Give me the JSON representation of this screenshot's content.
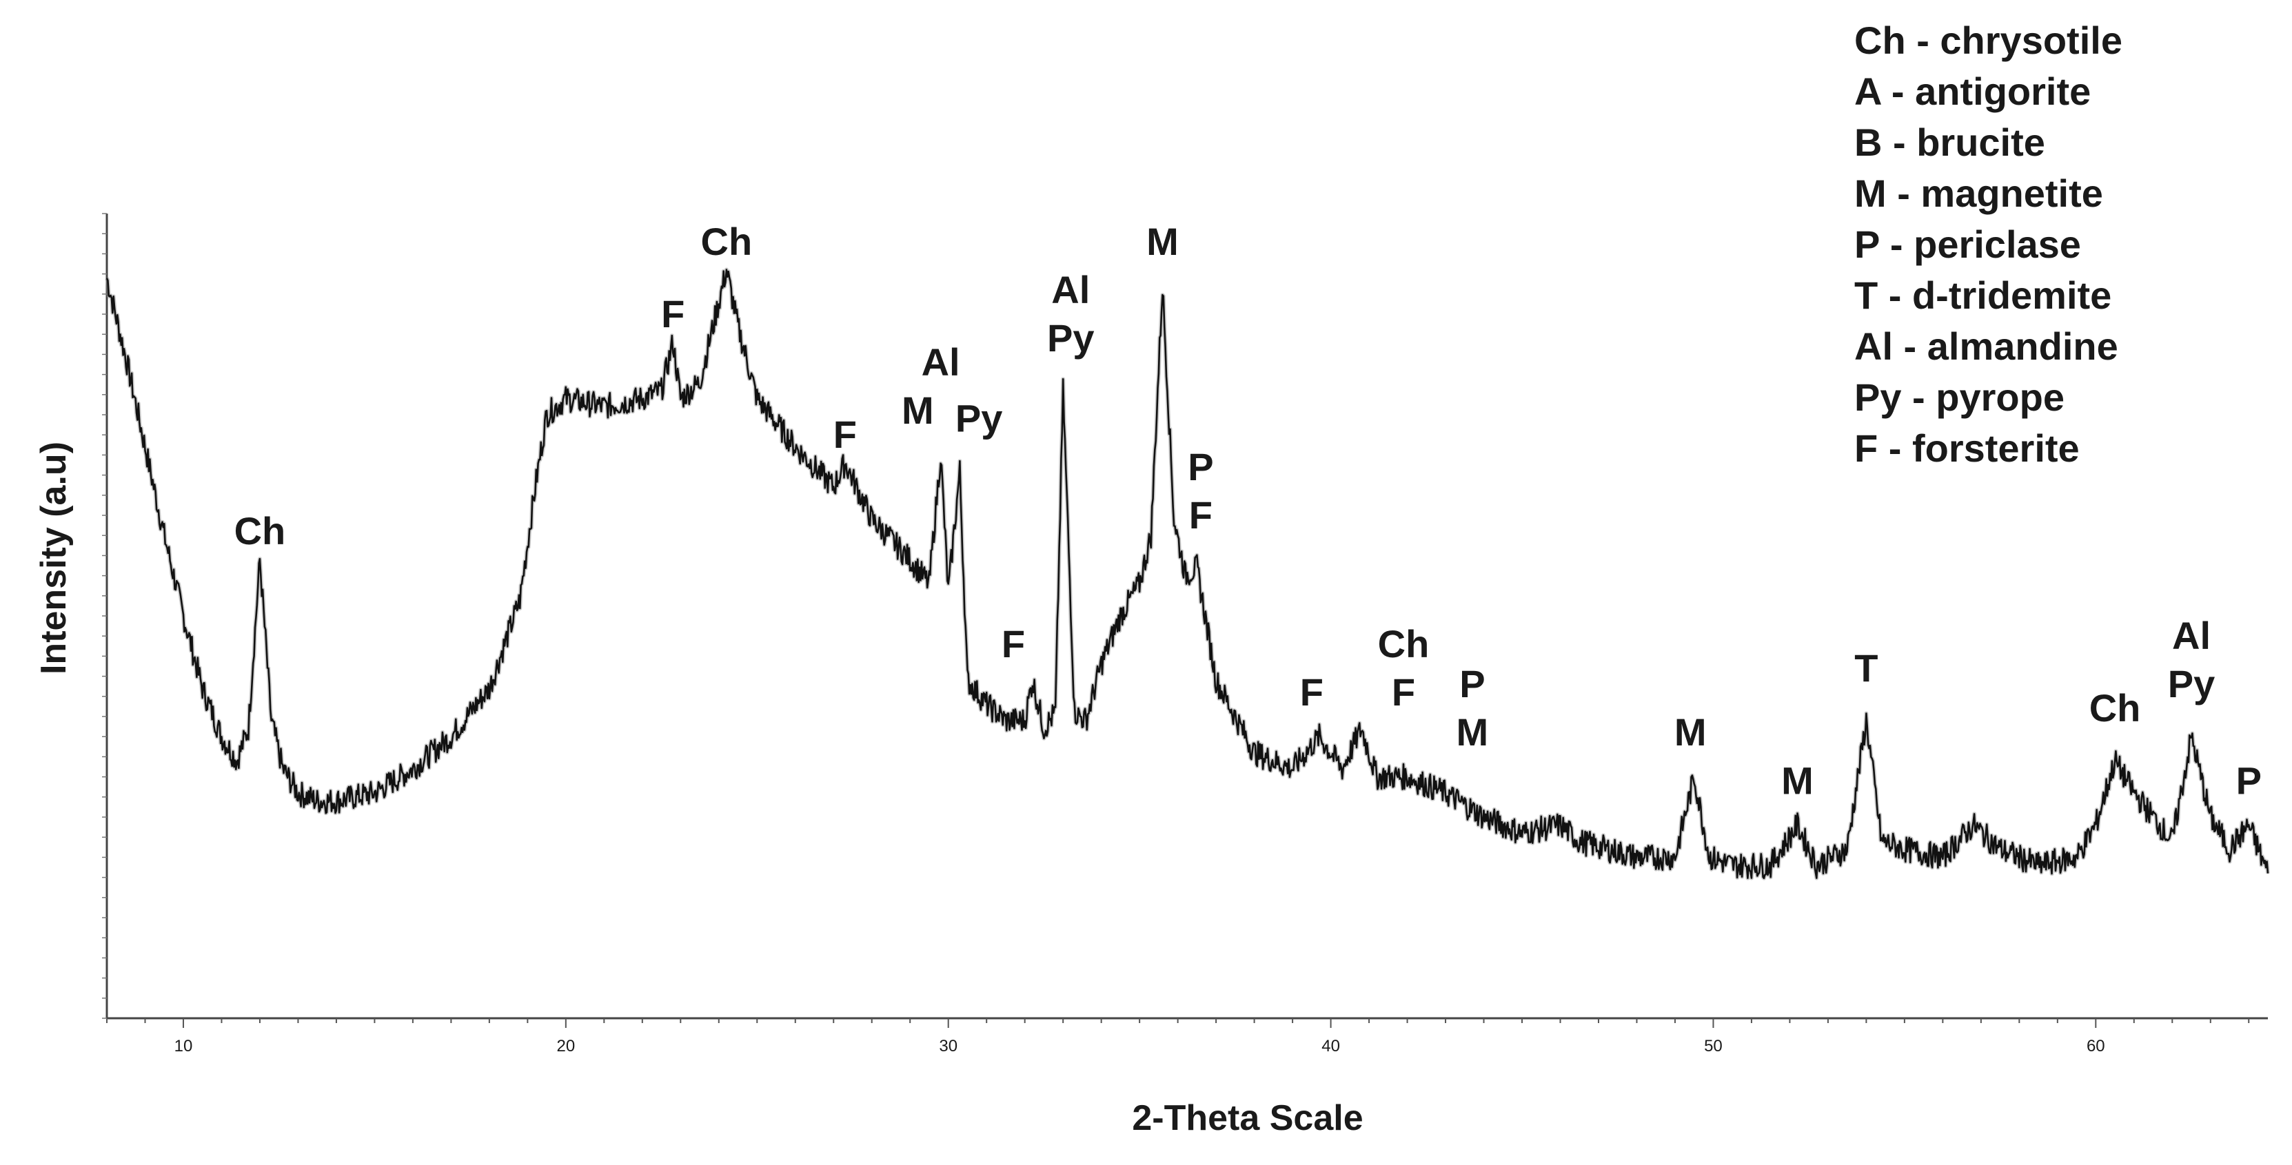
{
  "chart_data": {
    "type": "line",
    "title": "",
    "xlabel": "2-Theta Scale",
    "ylabel": "Intensity (a.u)",
    "xlim": [
      8,
      64.5
    ],
    "ylim": [
      0,
      100
    ],
    "x_ticks": [
      10,
      20,
      30,
      40,
      50,
      60
    ],
    "grid": false,
    "legend_position": "top-right",
    "line_color": "#111111",
    "legend": [
      "Ch - chrysotile",
      "A - antigorite",
      "B - brucite",
      "M - magnetite",
      "P - periclase",
      "T - d-tridemite",
      "Al - almandine",
      "Py - pyrope",
      "F - forsterite"
    ],
    "series": [
      {
        "points": [
          [
            8.0,
            92
          ],
          [
            8.5,
            82
          ],
          [
            9.0,
            71
          ],
          [
            9.5,
            60
          ],
          [
            10.0,
            50
          ],
          [
            10.5,
            41
          ],
          [
            11.0,
            35
          ],
          [
            11.4,
            32
          ],
          [
            11.7,
            36
          ],
          [
            12.0,
            57
          ],
          [
            12.3,
            37
          ],
          [
            12.6,
            31
          ],
          [
            13.0,
            28
          ],
          [
            13.5,
            27
          ],
          [
            14.0,
            27
          ],
          [
            15.0,
            28
          ],
          [
            16.0,
            31
          ],
          [
            17.0,
            35
          ],
          [
            18.0,
            41
          ],
          [
            18.8,
            52
          ],
          [
            19.2,
            66
          ],
          [
            19.5,
            75
          ],
          [
            20.0,
            77
          ],
          [
            21.0,
            76
          ],
          [
            22.0,
            77
          ],
          [
            22.5,
            78
          ],
          [
            22.8,
            84
          ],
          [
            23.0,
            77
          ],
          [
            23.5,
            79
          ],
          [
            24.0,
            89
          ],
          [
            24.2,
            93
          ],
          [
            24.5,
            86
          ],
          [
            25.0,
            77
          ],
          [
            26.0,
            71
          ],
          [
            27.0,
            66
          ],
          [
            27.3,
            69
          ],
          [
            28.0,
            62
          ],
          [
            29.0,
            57
          ],
          [
            29.5,
            54
          ],
          [
            29.8,
            70
          ],
          [
            30.0,
            53
          ],
          [
            30.3,
            68
          ],
          [
            30.5,
            42
          ],
          [
            31.0,
            39
          ],
          [
            31.5,
            37
          ],
          [
            32.0,
            37
          ],
          [
            32.2,
            42
          ],
          [
            32.5,
            36
          ],
          [
            32.8,
            38
          ],
          [
            33.0,
            78
          ],
          [
            33.3,
            38
          ],
          [
            33.6,
            37
          ],
          [
            34.0,
            44
          ],
          [
            34.5,
            50
          ],
          [
            35.0,
            54
          ],
          [
            35.3,
            60
          ],
          [
            35.6,
            91
          ],
          [
            35.9,
            62
          ],
          [
            36.2,
            55
          ],
          [
            36.5,
            56
          ],
          [
            37.0,
            42
          ],
          [
            38.0,
            33
          ],
          [
            39.0,
            31
          ],
          [
            39.7,
            35
          ],
          [
            40.3,
            31
          ],
          [
            40.8,
            36
          ],
          [
            41.2,
            30
          ],
          [
            42.0,
            30
          ],
          [
            43.0,
            28
          ],
          [
            44.0,
            25
          ],
          [
            45.0,
            23
          ],
          [
            46.0,
            24
          ],
          [
            46.5,
            22
          ],
          [
            48.0,
            20
          ],
          [
            49.0,
            20
          ],
          [
            49.5,
            30
          ],
          [
            49.9,
            20
          ],
          [
            50.5,
            19
          ],
          [
            51.5,
            19
          ],
          [
            52.2,
            24
          ],
          [
            52.7,
            19
          ],
          [
            53.5,
            21
          ],
          [
            54.0,
            37
          ],
          [
            54.4,
            22
          ],
          [
            55.0,
            21
          ],
          [
            56.0,
            20
          ],
          [
            56.8,
            24
          ],
          [
            57.5,
            21
          ],
          [
            58.5,
            19
          ],
          [
            59.5,
            20
          ],
          [
            60.0,
            24
          ],
          [
            60.5,
            32
          ],
          [
            61.0,
            28
          ],
          [
            61.5,
            25
          ],
          [
            62.0,
            22
          ],
          [
            62.5,
            35
          ],
          [
            63.0,
            25
          ],
          [
            63.5,
            21
          ],
          [
            64.0,
            24
          ],
          [
            64.5,
            18
          ]
        ]
      }
    ],
    "annotations": [
      {
        "lines": [
          "Ch"
        ],
        "x": 12.0,
        "y": 57
      },
      {
        "lines": [
          "F"
        ],
        "x": 22.8,
        "y": 84
      },
      {
        "lines": [
          "Ch"
        ],
        "x": 24.2,
        "y": 93
      },
      {
        "lines": [
          "F"
        ],
        "x": 27.3,
        "y": 69
      },
      {
        "lines": [
          "M"
        ],
        "x": 29.2,
        "y": 72
      },
      {
        "lines": [
          "Al"
        ],
        "x": 29.8,
        "y": 78
      },
      {
        "lines": [
          "Py"
        ],
        "x": 30.8,
        "y": 71
      },
      {
        "lines": [
          "F"
        ],
        "x": 31.7,
        "y": 43
      },
      {
        "lines": [
          "Al",
          "Py"
        ],
        "x": 33.2,
        "y": 81
      },
      {
        "lines": [
          "M"
        ],
        "x": 35.6,
        "y": 93
      },
      {
        "lines": [
          "P",
          "F"
        ],
        "x": 36.6,
        "y": 59
      },
      {
        "lines": [
          "F"
        ],
        "x": 39.5,
        "y": 37
      },
      {
        "lines": [
          "Ch",
          "F"
        ],
        "x": 41.9,
        "y": 37
      },
      {
        "lines": [
          "P",
          "M"
        ],
        "x": 43.7,
        "y": 32
      },
      {
        "lines": [
          "M"
        ],
        "x": 49.4,
        "y": 32
      },
      {
        "lines": [
          "M"
        ],
        "x": 52.2,
        "y": 26
      },
      {
        "lines": [
          "T"
        ],
        "x": 54.0,
        "y": 40
      },
      {
        "lines": [
          "Ch"
        ],
        "x": 60.5,
        "y": 35
      },
      {
        "lines": [
          "Al",
          "Py"
        ],
        "x": 62.5,
        "y": 38
      },
      {
        "lines": [
          "P"
        ],
        "x": 64.0,
        "y": 26
      }
    ]
  }
}
